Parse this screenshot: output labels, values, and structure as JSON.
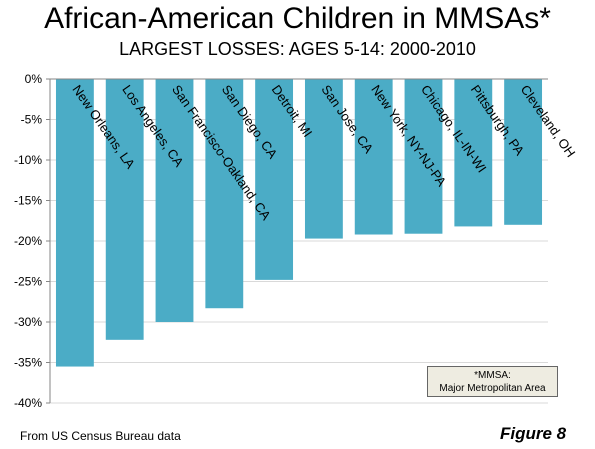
{
  "title": "African-American Children in MMSAs*",
  "subtitle": "LARGEST LOSSES: AGES 5-14: 2000-2010",
  "source": "From US Census Bureau data",
  "figure_label": "Figure 8",
  "note": {
    "line1": "*MMSA:",
    "line2": "Major Metropolitan Area"
  },
  "colors": {
    "bar": "#4bacc6",
    "grid": "#d9d9d9",
    "axis": "#868686",
    "note_bg": "#eeece1"
  },
  "chart_data": {
    "type": "bar",
    "title": "African-American Children in MMSAs*",
    "subtitle": "LARGEST LOSSES: AGES 5-14: 2000-2010",
    "xlabel": "",
    "ylabel": "",
    "categories": [
      "New Orleans, LA",
      "Los Angeles, CA",
      "San Francisco-Oakland, CA",
      "San Diego, CA",
      "Detroit, MI",
      "San Jose, CA",
      "New York, NY-NJ-PA",
      "Chicago, IL-IN-WI",
      "Pittsburgh, PA",
      "Cleveland, OH"
    ],
    "values": [
      -35.5,
      -32.2,
      -30.0,
      -28.3,
      -24.8,
      -19.7,
      -19.2,
      -19.1,
      -18.2,
      -18.0
    ],
    "ylim": [
      -40,
      0
    ],
    "yticks": [
      0,
      -5,
      -10,
      -15,
      -20,
      -25,
      -30,
      -35,
      -40
    ],
    "ytick_labels": [
      "0%",
      "-5%",
      "-10%",
      "-15%",
      "-20%",
      "-25%",
      "-30%",
      "-35%",
      "-40%"
    ],
    "grid": true,
    "legend": "none",
    "category_label_placement": "rotated-inside-top"
  }
}
